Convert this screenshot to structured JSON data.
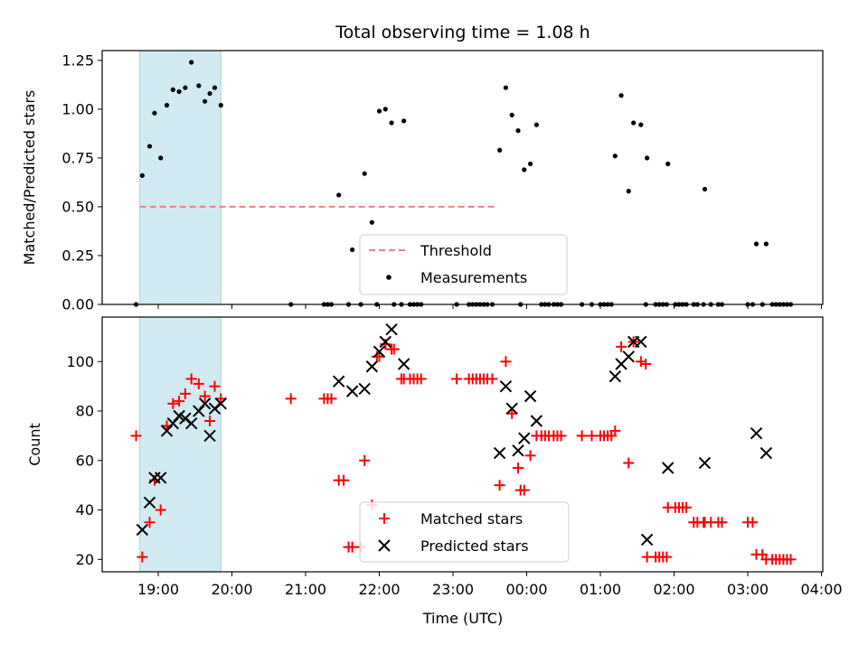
{
  "title": "Total observing time = 1.08 h",
  "colors": {
    "highlight": "#add8e6",
    "threshold": "#f47f7f",
    "measurement": "#000000",
    "matched": "#ff0000",
    "predicted": "#000000"
  },
  "highlight_span": [
    "18:45",
    "19:51"
  ],
  "x_axis": {
    "label": "Time (UTC)",
    "ticks": [
      "19:00",
      "20:00",
      "21:00",
      "22:00",
      "23:00",
      "00:00",
      "01:00",
      "02:00",
      "03:00",
      "04:00"
    ]
  },
  "chart_data": [
    {
      "type": "scatter",
      "ylabel": "Matched/Predicted stars",
      "ylim": [
        0,
        1.3
      ],
      "yticks": [
        "0.00",
        "0.25",
        "0.50",
        "0.75",
        "1.00",
        "1.25"
      ],
      "legend_position": "lower-center",
      "threshold": {
        "name": "Threshold",
        "value": 0.5,
        "x_range": [
          "18:45",
          "23:35"
        ]
      },
      "series": [
        {
          "name": "Measurements",
          "marker": "dot",
          "points": [
            [
              "18:42",
              0.0
            ],
            [
              "18:47",
              0.66
            ],
            [
              "18:53",
              0.81
            ],
            [
              "18:57",
              0.98
            ],
            [
              "19:02",
              0.75
            ],
            [
              "19:07",
              1.02
            ],
            [
              "19:12",
              1.1
            ],
            [
              "19:17",
              1.09
            ],
            [
              "19:22",
              1.11
            ],
            [
              "19:27",
              1.24
            ],
            [
              "19:33",
              1.12
            ],
            [
              "19:38",
              1.04
            ],
            [
              "19:42",
              1.08
            ],
            [
              "19:46",
              1.11
            ],
            [
              "19:51",
              1.02
            ],
            [
              "20:48",
              0.0
            ],
            [
              "21:15",
              0.0
            ],
            [
              "21:18",
              0.0
            ],
            [
              "21:21",
              0.0
            ],
            [
              "21:27",
              0.56
            ],
            [
              "21:35",
              0.0
            ],
            [
              "21:38",
              0.28
            ],
            [
              "21:45",
              0.0
            ],
            [
              "21:48",
              0.67
            ],
            [
              "21:54",
              0.42
            ],
            [
              "21:58",
              0.0
            ],
            [
              "22:00",
              0.99
            ],
            [
              "22:05",
              1.0
            ],
            [
              "22:10",
              0.93
            ],
            [
              "22:12",
              0.0
            ],
            [
              "22:18",
              0.0
            ],
            [
              "22:20",
              0.94
            ],
            [
              "22:25",
              0.0
            ],
            [
              "22:28",
              0.0
            ],
            [
              "22:31",
              0.0
            ],
            [
              "22:34",
              0.0
            ],
            [
              "23:03",
              0.0
            ],
            [
              "23:13",
              0.0
            ],
            [
              "23:16",
              0.0
            ],
            [
              "23:19",
              0.0
            ],
            [
              "23:22",
              0.0
            ],
            [
              "23:25",
              0.0
            ],
            [
              "23:28",
              0.0
            ],
            [
              "23:32",
              0.0
            ],
            [
              "23:38",
              0.79
            ],
            [
              "23:43",
              1.11
            ],
            [
              "23:48",
              0.97
            ],
            [
              "23:53",
              0.89
            ],
            [
              "23:55",
              0.0
            ],
            [
              "23:58",
              0.69
            ],
            [
              "00:03",
              0.72
            ],
            [
              "00:08",
              0.92
            ],
            [
              "00:12",
              0.0
            ],
            [
              "00:15",
              0.0
            ],
            [
              "00:18",
              0.0
            ],
            [
              "00:22",
              0.0
            ],
            [
              "00:25",
              0.0
            ],
            [
              "00:28",
              0.0
            ],
            [
              "00:45",
              0.0
            ],
            [
              "00:53",
              0.0
            ],
            [
              "01:00",
              0.0
            ],
            [
              "01:03",
              0.0
            ],
            [
              "01:06",
              0.0
            ],
            [
              "01:09",
              0.0
            ],
            [
              "01:12",
              0.76
            ],
            [
              "01:17",
              1.07
            ],
            [
              "01:23",
              0.58
            ],
            [
              "01:27",
              0.93
            ],
            [
              "01:33",
              0.92
            ],
            [
              "01:37",
              0.0
            ],
            [
              "01:38",
              0.75
            ],
            [
              "01:45",
              0.0
            ],
            [
              "01:48",
              0.0
            ],
            [
              "01:51",
              0.0
            ],
            [
              "01:54",
              0.0
            ],
            [
              "01:55",
              0.72
            ],
            [
              "02:01",
              0.0
            ],
            [
              "02:04",
              0.0
            ],
            [
              "02:07",
              0.0
            ],
            [
              "02:10",
              0.0
            ],
            [
              "02:16",
              0.0
            ],
            [
              "02:19",
              0.0
            ],
            [
              "02:24",
              0.0
            ],
            [
              "02:25",
              0.59
            ],
            [
              "02:30",
              0.0
            ],
            [
              "02:36",
              0.0
            ],
            [
              "02:39",
              0.0
            ],
            [
              "03:00",
              0.0
            ],
            [
              "03:04",
              0.0
            ],
            [
              "03:07",
              0.31
            ],
            [
              "03:12",
              0.0
            ],
            [
              "03:15",
              0.31
            ],
            [
              "03:20",
              0.0
            ],
            [
              "03:23",
              0.0
            ],
            [
              "03:26",
              0.0
            ],
            [
              "03:29",
              0.0
            ],
            [
              "03:32",
              0.0
            ],
            [
              "03:35",
              0.0
            ]
          ]
        }
      ],
      "legend": [
        "Threshold",
        "Measurements"
      ]
    },
    {
      "type": "scatter",
      "ylabel": "Count",
      "ylim": [
        15,
        118
      ],
      "yticks": [
        "20",
        "40",
        "60",
        "80",
        "100"
      ],
      "legend_position": "lower-center",
      "series": [
        {
          "name": "Matched stars",
          "marker": "plus",
          "points": [
            [
              "18:42",
              70
            ],
            [
              "18:47",
              21
            ],
            [
              "18:53",
              35
            ],
            [
              "18:57",
              52
            ],
            [
              "19:02",
              40
            ],
            [
              "19:07",
              74
            ],
            [
              "19:12",
              83
            ],
            [
              "19:17",
              84
            ],
            [
              "19:22",
              87
            ],
            [
              "19:27",
              93
            ],
            [
              "19:33",
              91
            ],
            [
              "19:38",
              86
            ],
            [
              "19:42",
              76
            ],
            [
              "19:46",
              90
            ],
            [
              "19:51",
              85
            ],
            [
              "20:48",
              85
            ],
            [
              "21:15",
              85
            ],
            [
              "21:18",
              85
            ],
            [
              "21:21",
              85
            ],
            [
              "21:27",
              52
            ],
            [
              "21:31",
              52
            ],
            [
              "21:35",
              25
            ],
            [
              "21:38",
              25
            ],
            [
              "21:45",
              25
            ],
            [
              "21:48",
              60
            ],
            [
              "21:54",
              42
            ],
            [
              "21:58",
              102
            ],
            [
              "22:00",
              102
            ],
            [
              "22:05",
              107
            ],
            [
              "22:10",
              105
            ],
            [
              "22:12",
              105
            ],
            [
              "22:18",
              93
            ],
            [
              "22:20",
              93
            ],
            [
              "22:25",
              93
            ],
            [
              "22:28",
              93
            ],
            [
              "22:31",
              93
            ],
            [
              "22:34",
              93
            ],
            [
              "23:03",
              93
            ],
            [
              "23:13",
              93
            ],
            [
              "23:16",
              93
            ],
            [
              "23:19",
              93
            ],
            [
              "23:22",
              93
            ],
            [
              "23:25",
              93
            ],
            [
              "23:28",
              93
            ],
            [
              "23:32",
              93
            ],
            [
              "23:38",
              50
            ],
            [
              "23:43",
              100
            ],
            [
              "23:48",
              79
            ],
            [
              "23:53",
              57
            ],
            [
              "23:55",
              48
            ],
            [
              "23:58",
              48
            ],
            [
              "00:03",
              62
            ],
            [
              "00:08",
              70
            ],
            [
              "00:12",
              70
            ],
            [
              "00:15",
              70
            ],
            [
              "00:18",
              70
            ],
            [
              "00:22",
              70
            ],
            [
              "00:25",
              70
            ],
            [
              "00:28",
              70
            ],
            [
              "00:45",
              70
            ],
            [
              "00:53",
              70
            ],
            [
              "01:00",
              70
            ],
            [
              "01:03",
              70
            ],
            [
              "01:06",
              70
            ],
            [
              "01:09",
              70
            ],
            [
              "01:12",
              72
            ],
            [
              "01:17",
              106
            ],
            [
              "01:23",
              59
            ],
            [
              "01:27",
              108
            ],
            [
              "01:33",
              100
            ],
            [
              "01:37",
              99
            ],
            [
              "01:38",
              21
            ],
            [
              "01:45",
              21
            ],
            [
              "01:48",
              21
            ],
            [
              "01:51",
              21
            ],
            [
              "01:54",
              21
            ],
            [
              "01:55",
              41
            ],
            [
              "02:01",
              41
            ],
            [
              "02:04",
              41
            ],
            [
              "02:07",
              41
            ],
            [
              "02:10",
              41
            ],
            [
              "02:16",
              35
            ],
            [
              "02:19",
              35
            ],
            [
              "02:24",
              35
            ],
            [
              "02:25",
              35
            ],
            [
              "02:30",
              35
            ],
            [
              "02:36",
              35
            ],
            [
              "02:39",
              35
            ],
            [
              "03:00",
              35
            ],
            [
              "03:04",
              35
            ],
            [
              "03:07",
              22
            ],
            [
              "03:12",
              22
            ],
            [
              "03:15",
              20
            ],
            [
              "03:20",
              20
            ],
            [
              "03:23",
              20
            ],
            [
              "03:26",
              20
            ],
            [
              "03:29",
              20
            ],
            [
              "03:32",
              20
            ],
            [
              "03:35",
              20
            ]
          ]
        },
        {
          "name": "Predicted stars",
          "marker": "x",
          "points": [
            [
              "18:47",
              32
            ],
            [
              "18:53",
              43
            ],
            [
              "18:57",
              53
            ],
            [
              "19:02",
              53
            ],
            [
              "19:07",
              72
            ],
            [
              "19:12",
              75
            ],
            [
              "19:17",
              78
            ],
            [
              "19:22",
              77
            ],
            [
              "19:27",
              75
            ],
            [
              "19:33",
              80
            ],
            [
              "19:38",
              83
            ],
            [
              "19:42",
              70
            ],
            [
              "19:46",
              81
            ],
            [
              "19:51",
              83
            ],
            [
              "21:27",
              92
            ],
            [
              "21:38",
              88
            ],
            [
              "21:48",
              89
            ],
            [
              "21:54",
              98
            ],
            [
              "22:00",
              104
            ],
            [
              "22:05",
              108
            ],
            [
              "22:10",
              113
            ],
            [
              "22:20",
              99
            ],
            [
              "23:38",
              63
            ],
            [
              "23:43",
              90
            ],
            [
              "23:48",
              81
            ],
            [
              "23:53",
              64
            ],
            [
              "23:58",
              69
            ],
            [
              "00:03",
              86
            ],
            [
              "00:08",
              76
            ],
            [
              "01:12",
              94
            ],
            [
              "01:17",
              99
            ],
            [
              "01:23",
              102
            ],
            [
              "01:27",
              108
            ],
            [
              "01:33",
              108
            ],
            [
              "01:38",
              28
            ],
            [
              "01:55",
              57
            ],
            [
              "02:25",
              59
            ],
            [
              "03:07",
              71
            ],
            [
              "03:15",
              63
            ]
          ]
        }
      ],
      "legend": [
        "Matched stars",
        "Predicted stars"
      ]
    }
  ]
}
